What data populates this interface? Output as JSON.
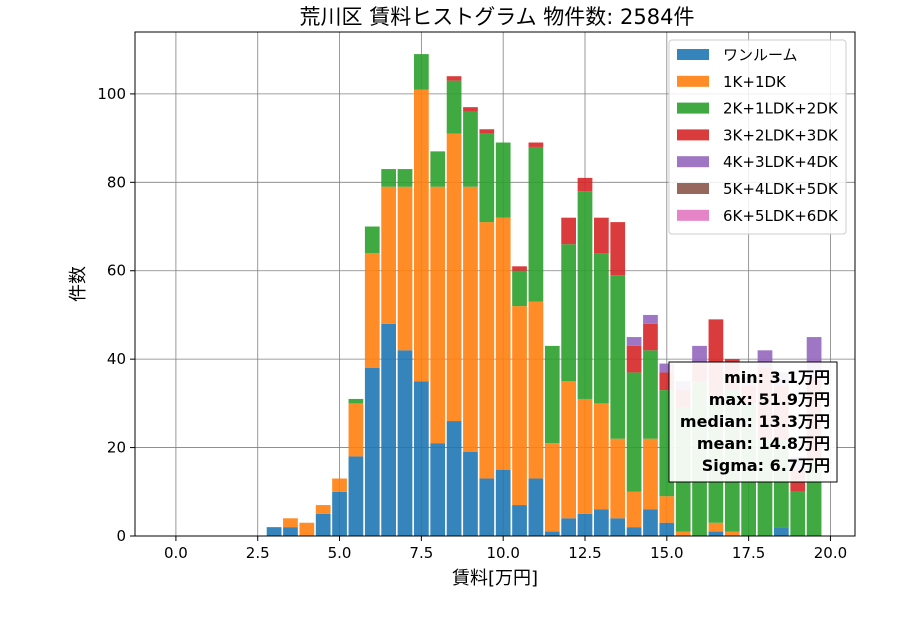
{
  "chart_data": {
    "type": "bar",
    "stacked": true,
    "title": "荒川区 賃料ヒストグラム  物件数: 2584件",
    "xlabel": "賃料[万円]",
    "ylabel": "件数",
    "xlim": [
      -1.25,
      20.75
    ],
    "ylim": [
      0,
      114
    ],
    "x_ticks": [
      0.0,
      2.5,
      5.0,
      7.5,
      10.0,
      12.5,
      15.0,
      17.5,
      20.0
    ],
    "x_tick_labels": [
      "0.0",
      "2.5",
      "5.0",
      "7.5",
      "10.0",
      "12.5",
      "15.0",
      "17.5",
      "20.0"
    ],
    "y_ticks": [
      0,
      20,
      40,
      60,
      80,
      100
    ],
    "y_tick_labels": [
      "0",
      "20",
      "40",
      "60",
      "80",
      "100"
    ],
    "grid": true,
    "legend_position": "top-right",
    "bin_width": 0.5,
    "bin_centers": [
      3.0,
      3.5,
      4.0,
      4.5,
      5.0,
      5.5,
      6.0,
      6.5,
      7.0,
      7.5,
      8.0,
      8.5,
      9.0,
      9.5,
      10.0,
      10.5,
      11.0,
      11.5,
      12.0,
      12.5,
      13.0,
      13.5,
      14.0,
      14.5,
      15.0,
      15.5,
      16.0,
      16.5,
      17.0,
      17.5,
      18.0,
      18.5,
      19.0,
      19.5
    ],
    "series": [
      {
        "name": "ワンルーム",
        "color": "#1f77b4",
        "values": [
          2,
          2,
          0,
          5,
          10,
          18,
          38,
          48,
          42,
          35,
          21,
          26,
          19,
          13,
          15,
          7,
          13,
          1,
          4,
          5,
          6,
          4,
          2,
          6,
          3,
          0,
          0,
          1,
          0,
          0,
          0,
          2,
          0,
          0
        ]
      },
      {
        "name": "1K+1DK",
        "color": "#ff7f0e",
        "values": [
          0,
          2,
          3,
          2,
          3,
          12,
          26,
          31,
          37,
          66,
          58,
          65,
          60,
          58,
          57,
          45,
          40,
          20,
          31,
          26,
          24,
          18,
          8,
          16,
          6,
          1,
          0,
          2,
          1,
          0,
          0,
          0,
          0,
          0
        ]
      },
      {
        "name": "2K+1LDK+2DK",
        "color": "#2ca02c",
        "values": [
          0,
          0,
          0,
          0,
          0,
          1,
          6,
          4,
          4,
          8,
          8,
          12,
          17,
          20,
          17,
          8,
          35,
          22,
          31,
          47,
          34,
          37,
          27,
          20,
          24,
          28,
          35,
          28,
          32,
          30,
          22,
          20,
          10,
          17
        ]
      },
      {
        "name": "3K+2LDK+3DK",
        "color": "#d62728",
        "values": [
          0,
          0,
          0,
          0,
          0,
          0,
          0,
          0,
          0,
          0,
          0,
          1,
          1,
          1,
          0,
          1,
          1,
          0,
          6,
          3,
          8,
          12,
          6,
          6,
          4,
          4,
          4,
          18,
          7,
          4,
          16,
          12,
          5,
          19
        ]
      },
      {
        "name": "4K+3LDK+4DK",
        "color": "#9467bd",
        "values": [
          0,
          0,
          0,
          0,
          0,
          0,
          0,
          0,
          0,
          0,
          0,
          0,
          0,
          0,
          0,
          0,
          0,
          0,
          0,
          0,
          0,
          0,
          2,
          2,
          2,
          2,
          4,
          0,
          0,
          2,
          4,
          3,
          3,
          9
        ]
      },
      {
        "name": "5K+4LDK+5DK",
        "color": "#8c564b",
        "values": [
          0,
          0,
          0,
          0,
          0,
          0,
          0,
          0,
          0,
          0,
          0,
          0,
          0,
          0,
          0,
          0,
          0,
          0,
          0,
          0,
          0,
          0,
          0,
          0,
          0,
          0,
          0,
          0,
          0,
          0,
          0,
          0,
          0,
          0
        ]
      },
      {
        "name": "6K+5LDK+6DK",
        "color": "#e377c2",
        "values": [
          0,
          0,
          0,
          0,
          0,
          0,
          0,
          0,
          0,
          0,
          0,
          0,
          0,
          0,
          0,
          0,
          0,
          0,
          0,
          0,
          0,
          0,
          0,
          0,
          0,
          0,
          0,
          0,
          0,
          0,
          0,
          0,
          0,
          0
        ]
      }
    ],
    "stats_box": {
      "lines": [
        "min: 3.1万円",
        "max: 51.9万円",
        "median: 13.3万円",
        "mean: 14.8万円",
        "Sigma: 6.7万円"
      ]
    }
  }
}
